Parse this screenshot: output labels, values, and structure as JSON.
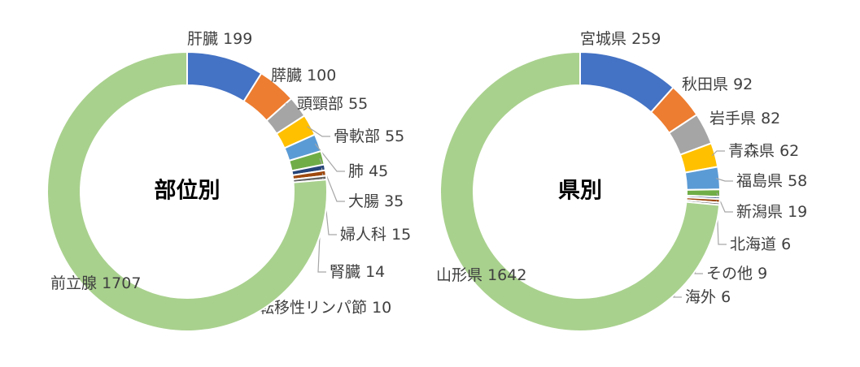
{
  "chart_data": [
    {
      "type": "donut",
      "title": "部位別",
      "categories": [
        "肝臓",
        "膵臓",
        "頭頸部",
        "骨軟部",
        "肺",
        "大腸",
        "婦人科",
        "腎臓",
        "転移性リンパ節",
        "前立腺"
      ],
      "values": [
        199,
        100,
        55,
        55,
        45,
        35,
        15,
        14,
        10,
        1707
      ],
      "colors": [
        "#4472c4",
        "#ed7d31",
        "#a5a5a5",
        "#ffc000",
        "#5b9bd5",
        "#70ad47",
        "#264478",
        "#9e480e",
        "#636363",
        "#a9d18e"
      ]
    },
    {
      "type": "donut",
      "title": "県別",
      "categories": [
        "宮城県",
        "秋田県",
        "岩手県",
        "青森県",
        "福島県",
        "新潟県",
        "北海道",
        "その他",
        "海外",
        "山形県"
      ],
      "values": [
        259,
        92,
        82,
        62,
        58,
        19,
        6,
        9,
        6,
        1642
      ],
      "colors": [
        "#4472c4",
        "#ed7d31",
        "#a5a5a5",
        "#ffc000",
        "#5b9bd5",
        "#70ad47",
        "#264478",
        "#9e480e",
        "#636363",
        "#a9d18e"
      ]
    }
  ]
}
